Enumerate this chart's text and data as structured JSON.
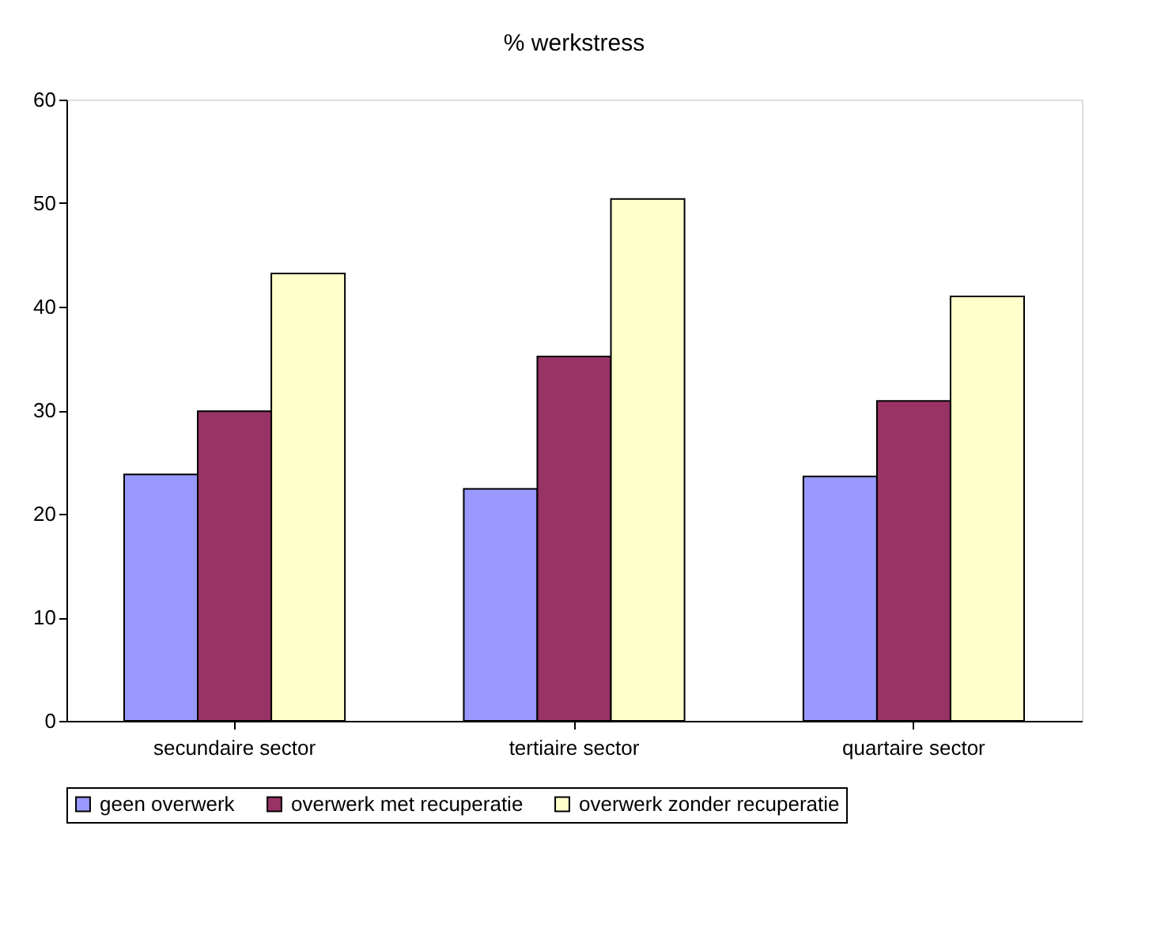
{
  "chart_data": {
    "type": "bar",
    "title": "% werkstress",
    "categories": [
      "secundaire sector",
      "tertiaire sector",
      "quartaire sector"
    ],
    "series": [
      {
        "name": "geen overwerk",
        "color": "#9999ff",
        "values": [
          23.8,
          22.4,
          23.6
        ]
      },
      {
        "name": "overwerk met recuperatie",
        "color": "#993366",
        "values": [
          29.9,
          35.2,
          30.9
        ]
      },
      {
        "name": "overwerk zonder recuperatie",
        "color": "#ffffcc",
        "values": [
          43.2,
          50.4,
          41.0
        ]
      }
    ],
    "ylim": [
      0,
      60
    ],
    "yticks": [
      0,
      10,
      20,
      30,
      40,
      50,
      60
    ],
    "grid": false,
    "legend": "bottom"
  }
}
